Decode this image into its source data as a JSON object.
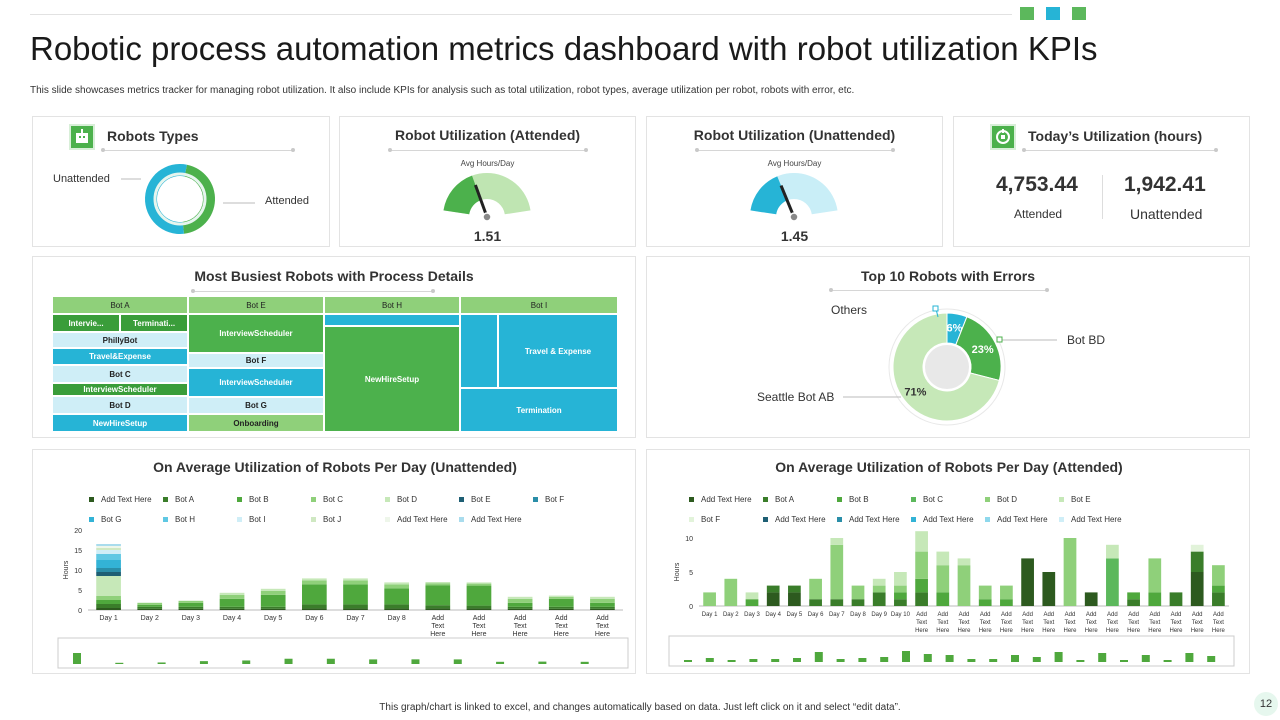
{
  "page": {
    "title": "Robotic process automation metrics dashboard with robot utilization KPIs",
    "subtitle": "This slide showcases metrics tracker for managing robot utilization. It also include KPIs for analysis such as total utilization, robot types, average utilization per robot, robots with error, etc.",
    "footer": "This graph/chart is linked to excel, and changes automatically based on data. Just left click on it and select “edit data”.",
    "page_number": "12",
    "accent_colors": [
      "#5cb85c",
      "#26b4d6",
      "#5cb85c"
    ]
  },
  "robot_types": {
    "title": "Robots  Types",
    "label_unattended": "Unattended",
    "label_attended": "Attended",
    "icon": "robot-icon"
  },
  "util_attended": {
    "title": "Robot Utilization (Attended)",
    "caption": "Avg Hours/Day",
    "value": "1.51"
  },
  "util_unattended": {
    "title": "Robot Utilization (Unattended)",
    "caption": "Avg Hours/Day",
    "value": "1.45"
  },
  "today_util": {
    "title": "Today’s Utilization (hours)",
    "attended_value": "4,753.44",
    "attended_label": "Attended",
    "unattended_value": "1,942.41",
    "unattended_label": "Unattended",
    "icon": "robot-icon"
  },
  "busiest": {
    "title": "Most Busiest Robots  with Process Details",
    "headers": [
      "Bot A",
      "Bot E",
      "Bot H",
      "Bot I"
    ],
    "col_a": [
      "Intervie...",
      "Terminati...",
      "PhillyBot",
      "Travel&Expense",
      "Bot C",
      "InterviewScheduler",
      "Bot D",
      "NewHireSetup"
    ],
    "col_e": [
      "InterviewScheduler",
      "Bot F",
      "InterviewScheduler",
      "Bot G",
      "Onboarding"
    ],
    "col_h": [
      "NewHireSetup"
    ],
    "col_i": [
      "Travel & Expense",
      "Termination"
    ]
  },
  "errors": {
    "title": "Top 10 Robots  with Errors",
    "labels": [
      "Others",
      "Bot BD",
      "Seattle Bot AB"
    ]
  },
  "chart_data": [
    {
      "type": "pie",
      "title": "Robots  Types",
      "categories": [
        "Unattended",
        "Attended"
      ],
      "values": [
        45,
        55
      ]
    },
    {
      "type": "gauge",
      "title": "Robot Utilization (Attended)",
      "label": "Avg Hours/Day",
      "value": 1.51,
      "range": [
        0,
        4
      ]
    },
    {
      "type": "gauge",
      "title": "Robot Utilization (Unattended)",
      "label": "Avg Hours/Day",
      "value": 1.45,
      "range": [
        0,
        4
      ]
    },
    {
      "type": "pie",
      "title": "Top 10 Robots  with Errors",
      "categories": [
        "Others",
        "Bot BD",
        "Seattle Bot AB"
      ],
      "values": [
        6,
        23,
        71
      ],
      "labels": [
        "6%",
        "23%",
        "71%"
      ]
    },
    {
      "type": "bar",
      "stacked": true,
      "title": "On Average Utilization of Robots  Per Day (Unattended)",
      "ylabel": "Hours",
      "ylim": [
        0,
        20
      ],
      "yticks": [
        "0",
        "5",
        "10",
        "15",
        "20"
      ],
      "categories": [
        "Day 1",
        "Day 2",
        "Day 3",
        "Day 4",
        "Day 5",
        "Day 6",
        "Day 7",
        "Day 8",
        "Add Text Here",
        "Add Text Here",
        "Add Text Here",
        "Add Text Here",
        "Add Text Here"
      ],
      "legend": [
        "Add Text Here",
        "Bot A",
        "Bot B",
        "Bot C",
        "Bot D",
        "Bot E",
        "Bot F",
        "Bot G",
        "Bot H",
        "Bot I",
        "Bot J",
        "Add Text Here",
        "Add Text Here"
      ],
      "legend_colors": [
        "#2d5a1f",
        "#3a7d2a",
        "#4fa83d",
        "#8fd07a",
        "#c6e8b8",
        "#1e5f74",
        "#2a8ea8",
        "#33b3d6",
        "#5fc8e3",
        "#cfeef7",
        "#cfe8c2",
        "#eef6ea",
        "#a9dced"
      ],
      "series": [
        {
          "name": "Add Text Here",
          "values": [
            0.5,
            0.3,
            0.3,
            0.3,
            0.3,
            0.4,
            0.4,
            0.4,
            0.4,
            0.4,
            0.3,
            0.3,
            0.3
          ]
        },
        {
          "name": "Bot A",
          "values": [
            1,
            0.5,
            0.5,
            0.5,
            0.5,
            1,
            1,
            1,
            0.8,
            0.7,
            0.5,
            0.5,
            0.5
          ]
        },
        {
          "name": "Bot B",
          "values": [
            1,
            0.5,
            1,
            2,
            3,
            5,
            5,
            4,
            5,
            5,
            1,
            2,
            1
          ]
        },
        {
          "name": "Bot C",
          "values": [
            1,
            0.5,
            0.5,
            1,
            1,
            1,
            1,
            1,
            0.5,
            0.5,
            1,
            0.5,
            1
          ]
        },
        {
          "name": "Bot D",
          "values": [
            5,
            0,
            0,
            0.5,
            0.5,
            0.5,
            0.5,
            0.5,
            0.3,
            0.3,
            0.5,
            0.3,
            0.5
          ]
        },
        {
          "name": "Bot E",
          "values": [
            1,
            0,
            0,
            0,
            0,
            0,
            0,
            0,
            0,
            0,
            0,
            0,
            0
          ]
        },
        {
          "name": "Bot F",
          "values": [
            1,
            0,
            0,
            0,
            0,
            0,
            0,
            0,
            0,
            0,
            0,
            0,
            0
          ]
        },
        {
          "name": "Bot G",
          "values": [
            2,
            0,
            0,
            0,
            0,
            0,
            0,
            0,
            0,
            0,
            0,
            0,
            0
          ]
        },
        {
          "name": "Bot H",
          "values": [
            1.5,
            0,
            0,
            0,
            0,
            0,
            0,
            0,
            0,
            0,
            0,
            0,
            0
          ]
        },
        {
          "name": "Bot I",
          "values": [
            1,
            0,
            0,
            0,
            0,
            0,
            0,
            0,
            0,
            0,
            0,
            0,
            0
          ]
        },
        {
          "name": "Bot J",
          "values": [
            0.5,
            0,
            0,
            0,
            0,
            0,
            0,
            0,
            0,
            0,
            0,
            0,
            0
          ]
        },
        {
          "name": "Add Text Here",
          "values": [
            0.5,
            0,
            0,
            0,
            0,
            0,
            0,
            0,
            0,
            0,
            0,
            0,
            0
          ]
        },
        {
          "name": "Add Text Here",
          "values": [
            0.5,
            0,
            0,
            0,
            0,
            0,
            0,
            0,
            0,
            0,
            0,
            0,
            0
          ]
        }
      ]
    },
    {
      "type": "bar",
      "stacked": true,
      "title": "On Average Utilization of Robots  Per Day (Attended)",
      "ylabel": "Hours",
      "ylim": [
        0,
        10
      ],
      "yticks": [
        "0",
        "5",
        "10"
      ],
      "categories": [
        "Day 1",
        "Day 2",
        "Day 3",
        "Day 4",
        "Day 5",
        "Day 6",
        "Day 7",
        "Day 8",
        "Day 9",
        "Day 10",
        "Add Text Here",
        "Add Text Here",
        "Add Text Here",
        "Add Text Here",
        "Add Text Here",
        "Add Text Here",
        "Add Text Here",
        "Add Text Here",
        "Add Text Here",
        "Add Text Here",
        "Add Text Here",
        "Add Text Here",
        "Add Text Here",
        "Add Text Here",
        "Add Text Here"
      ],
      "legend": [
        "Add Text Here",
        "Bot A",
        "Bot B",
        "Bot C",
        "Bot D",
        "Bot E",
        "Bot F",
        "Add Text Here",
        "Add Text Here",
        "Add Text Here",
        "Add Text Here",
        "Add Text Here"
      ],
      "legend_colors": [
        "#2d5a1f",
        "#3a7d2a",
        "#4fa83d",
        "#5cb85c",
        "#8fd07a",
        "#c6e8b8",
        "#e2f3da",
        "#1e5f74",
        "#2a8ea8",
        "#33b3d6",
        "#8ed8ec",
        "#cfeef7"
      ],
      "series": [
        {
          "name": "Add Text Here",
          "values": [
            0,
            0,
            0,
            2,
            2,
            0,
            0,
            0,
            0,
            0,
            0,
            0,
            0,
            0,
            0,
            7,
            5,
            0,
            2,
            0,
            0,
            0,
            0,
            5,
            0
          ]
        },
        {
          "name": "Bot B",
          "values": [
            0,
            0,
            0,
            1,
            1,
            1,
            1,
            1,
            2,
            1,
            2,
            0,
            0,
            0,
            0,
            0,
            0,
            0,
            0,
            0,
            1,
            0,
            2,
            3,
            2
          ]
        },
        {
          "name": "Bot C",
          "values": [
            0,
            0,
            1,
            0,
            0,
            0,
            0,
            0,
            0,
            1,
            2,
            2,
            0,
            1,
            1,
            0,
            0,
            0,
            0,
            0,
            1,
            2,
            0,
            0,
            1
          ]
        },
        {
          "name": "Bot D",
          "values": [
            0,
            0,
            0,
            0,
            0,
            0,
            0,
            0,
            0,
            0,
            0,
            0,
            0,
            0,
            0,
            0,
            0,
            0,
            0,
            7,
            0,
            0,
            0,
            0,
            0
          ]
        },
        {
          "name": "Add Text Here",
          "values": [
            2,
            4,
            0,
            0,
            0,
            3,
            8,
            2,
            1,
            1,
            4,
            4,
            6,
            2,
            2,
            0,
            0,
            10,
            0,
            0,
            0,
            5,
            0,
            0,
            3
          ]
        },
        {
          "name": "Bot E",
          "values": [
            0,
            0,
            1,
            0,
            0,
            0,
            1,
            0,
            1,
            2,
            3,
            2,
            1,
            0,
            0,
            0,
            0,
            0,
            0,
            2,
            0,
            0,
            0,
            0,
            0
          ]
        },
        {
          "name": "Add Text Here",
          "values": [
            0,
            0,
            0,
            0,
            0,
            0,
            0,
            0,
            0,
            0,
            0,
            0,
            0,
            0,
            0,
            0,
            0,
            0,
            0,
            0,
            0,
            0,
            0,
            1,
            0
          ]
        }
      ]
    }
  ]
}
